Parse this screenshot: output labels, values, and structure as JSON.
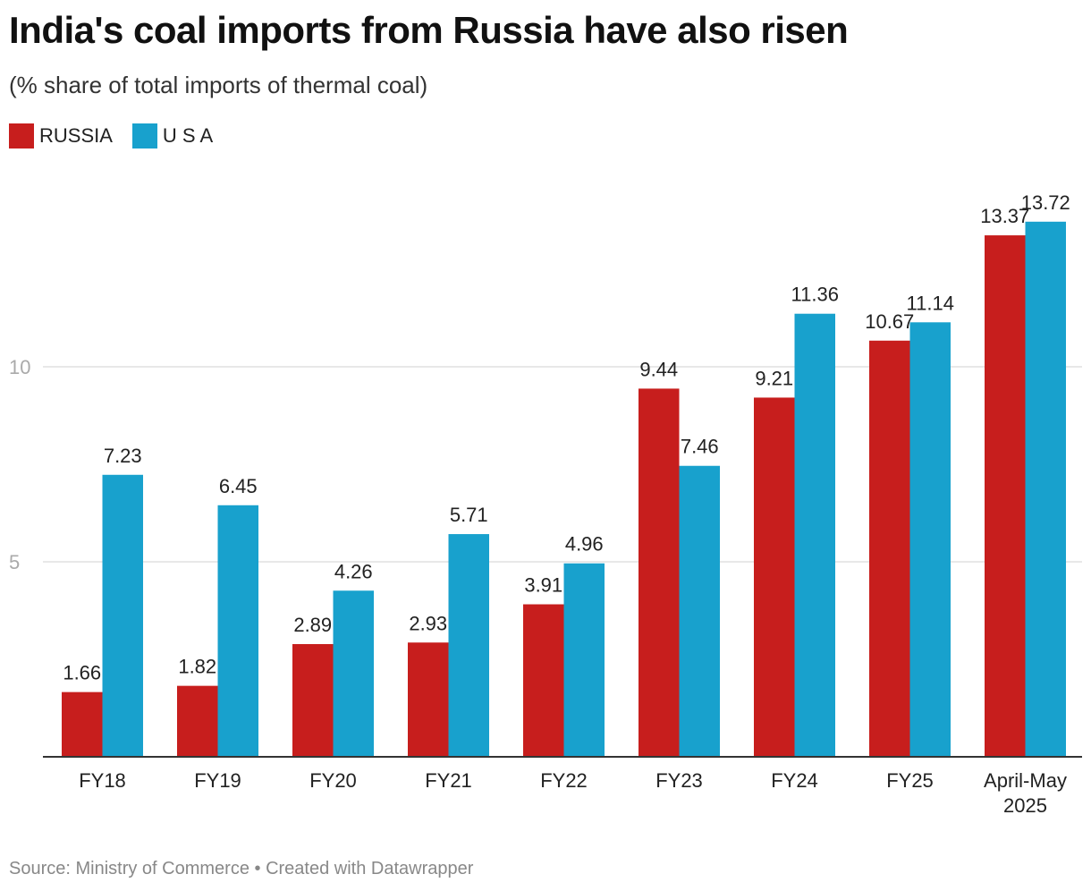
{
  "header": {
    "title": "India's coal imports from Russia have also risen",
    "subtitle": "(% share of total imports of thermal coal)"
  },
  "footer": {
    "source_text": "Source: Ministry of Commerce • Created with Datawrapper"
  },
  "colors": {
    "russia": "#c71e1d",
    "usa": "#18a1cd",
    "grid": "#e0e0e0",
    "axis": "#333333",
    "tick_text": "#aaaaaa"
  },
  "chart_data": {
    "type": "bar",
    "categories": [
      [
        "FY18"
      ],
      [
        "FY19"
      ],
      [
        "FY20"
      ],
      [
        "FY21"
      ],
      [
        "FY22"
      ],
      [
        "FY23"
      ],
      [
        "FY24"
      ],
      [
        "FY25"
      ],
      [
        "April-May",
        "2025"
      ]
    ],
    "series": [
      {
        "name": "RUSSIA",
        "color": "#c71e1d",
        "values": [
          1.66,
          1.82,
          2.89,
          2.93,
          3.91,
          9.44,
          9.21,
          10.67,
          13.37
        ]
      },
      {
        "name": "U S A",
        "color": "#18a1cd",
        "values": [
          7.23,
          6.45,
          4.26,
          5.71,
          4.96,
          7.46,
          11.36,
          11.14,
          13.72
        ]
      }
    ],
    "value_labels": [
      [
        "1.66",
        "1.82",
        "2.89",
        "2.93",
        "3.91",
        "9.44",
        "9.21",
        "10.67",
        "13.37"
      ],
      [
        "7.23",
        "6.45",
        "4.26",
        "5.71",
        "4.96",
        "7.46",
        "11.36",
        "11.14",
        "13.72"
      ]
    ],
    "yticks": [
      5,
      10
    ],
    "ytick_labels": [
      "5",
      "10"
    ],
    "ylim": [
      0,
      14.5
    ],
    "grid": true,
    "legend": "top-left"
  }
}
